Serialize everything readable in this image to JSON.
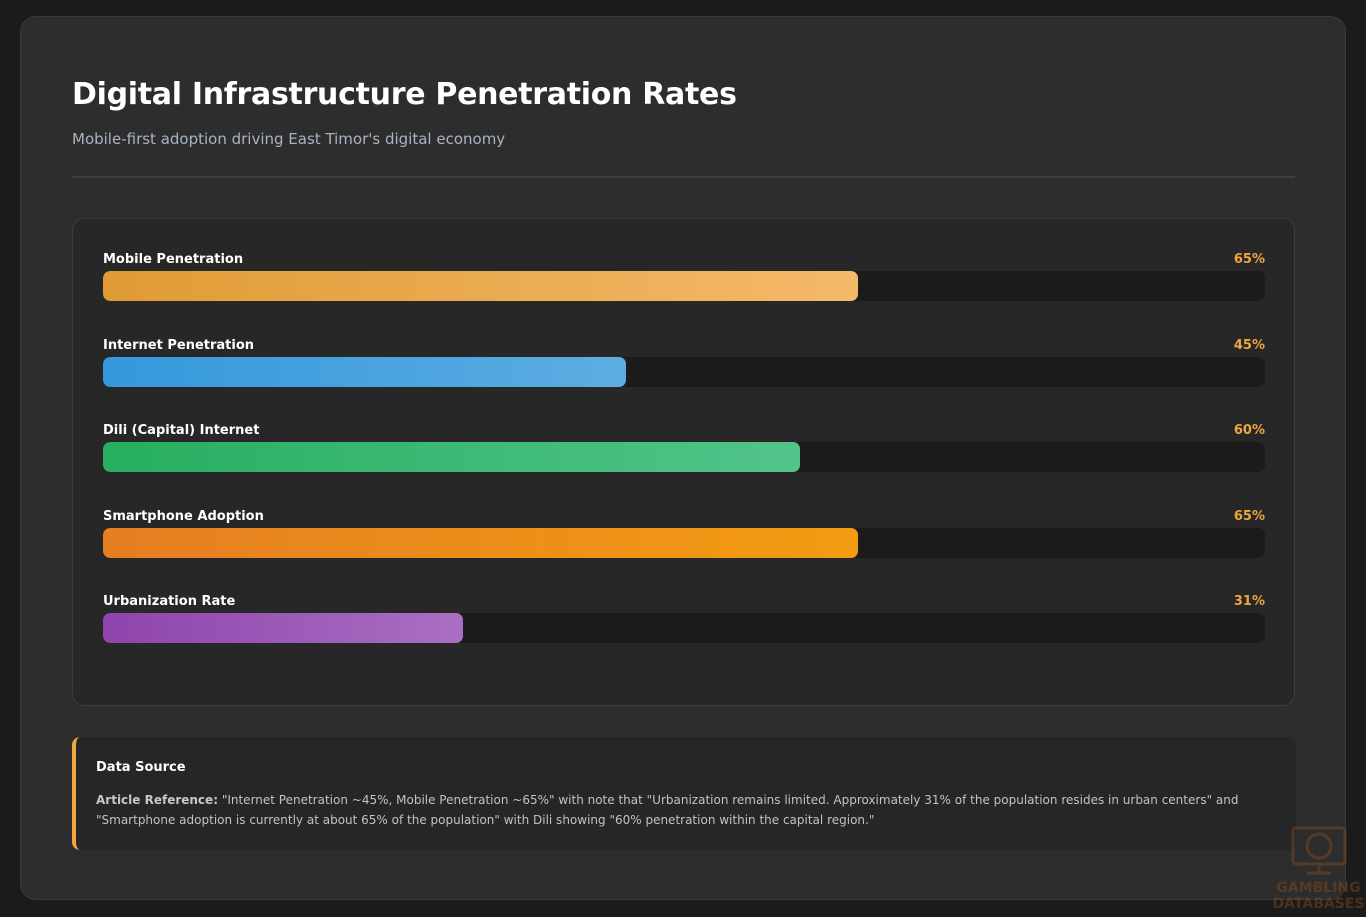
{
  "header": {
    "title": "Digital Infrastructure Penetration Rates",
    "subtitle": "Mobile-first adoption driving East Timor's digital economy"
  },
  "chart_data": {
    "type": "bar",
    "orientation": "horizontal",
    "categories": [
      "Mobile Penetration",
      "Internet Penetration",
      "Dili (Capital) Internet",
      "Smartphone Adoption",
      "Urbanization Rate"
    ],
    "values": [
      65,
      45,
      60,
      65,
      31
    ],
    "value_labels": [
      "65%",
      "45%",
      "60%",
      "65%",
      "31%"
    ],
    "xlim": [
      0,
      100
    ],
    "colors": [
      [
        "#e09b35",
        "#f4b96a"
      ],
      [
        "#3498db",
        "#5dade2"
      ],
      [
        "#27ae60",
        "#52c48a"
      ],
      [
        "#e67e22",
        "#f39c12"
      ],
      [
        "#8e44ad",
        "#a96fc2"
      ]
    ]
  },
  "source": {
    "title": "Data Source",
    "label": "Article Reference:",
    "text": " \"Internet Penetration ~45%, Mobile Penetration ~65%\" with note that \"Urbanization remains limited. Approximately 31% of the population resides in urban centers\" and \"Smartphone adoption is currently at about 65% of the population\" with Dili showing \"60% penetration within the capital region.\""
  },
  "watermark": {
    "text": "GAMBLING DATABASES"
  }
}
